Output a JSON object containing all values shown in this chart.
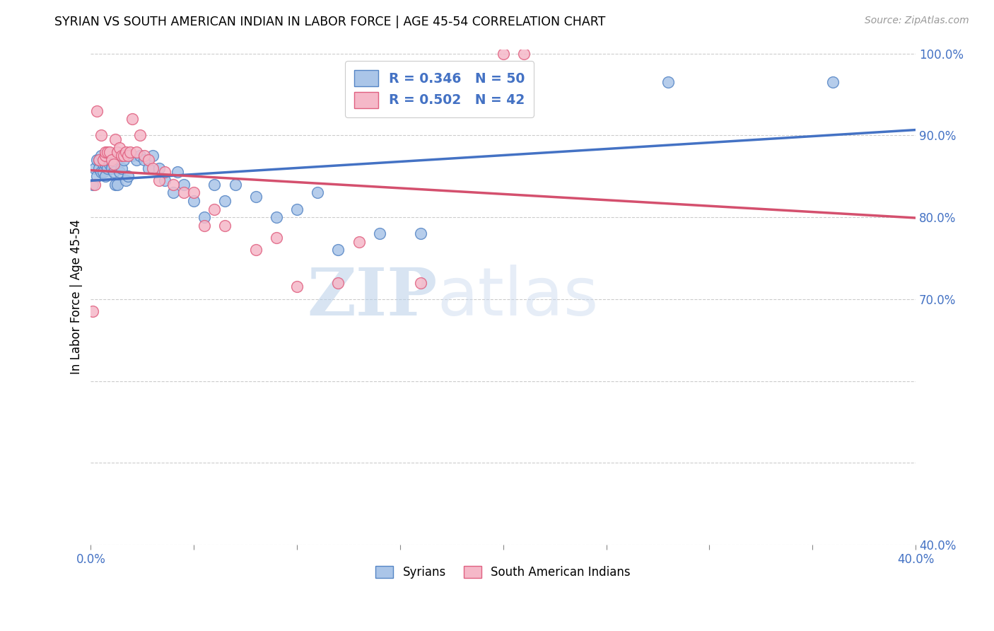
{
  "title": "SYRIAN VS SOUTH AMERICAN INDIAN IN LABOR FORCE | AGE 45-54 CORRELATION CHART",
  "source": "Source: ZipAtlas.com",
  "ylabel": "In Labor Force | Age 45-54",
  "xmin": 0.0,
  "xmax": 0.4,
  "ymin": 0.4,
  "ymax": 1.005,
  "x_tick_vals": [
    0.0,
    0.05,
    0.1,
    0.15,
    0.2,
    0.25,
    0.3,
    0.35,
    0.4
  ],
  "x_tick_labels": [
    "0.0%",
    "",
    "",
    "",
    "",
    "",
    "",
    "",
    "40.0%"
  ],
  "y_tick_vals": [
    0.4,
    0.5,
    0.6,
    0.7,
    0.8,
    0.9,
    1.0
  ],
  "y_tick_labels": [
    "40.0%",
    "",
    "",
    "70.0%",
    "80.0%",
    "90.0%",
    "100.0%"
  ],
  "syrian_color": "#aac5e8",
  "sa_indian_color": "#f5b8c8",
  "syrian_edge_color": "#5585c5",
  "sa_indian_edge_color": "#e06080",
  "syrian_line_color": "#4472c4",
  "sa_indian_line_color": "#d4506e",
  "R_syrian": 0.346,
  "N_syrian": 50,
  "R_sa_indian": 0.502,
  "N_sa_indian": 42,
  "legend_label_syrian": "Syrians",
  "legend_label_sa_indian": "South American Indians",
  "watermark_zip": "ZIP",
  "watermark_atlas": "atlas",
  "syrian_x": [
    0.001,
    0.002,
    0.003,
    0.003,
    0.004,
    0.004,
    0.005,
    0.005,
    0.006,
    0.006,
    0.007,
    0.007,
    0.008,
    0.009,
    0.01,
    0.01,
    0.011,
    0.012,
    0.013,
    0.014,
    0.015,
    0.016,
    0.017,
    0.018,
    0.02,
    0.022,
    0.024,
    0.026,
    0.028,
    0.03,
    0.033,
    0.036,
    0.04,
    0.042,
    0.045,
    0.05,
    0.055,
    0.06,
    0.065,
    0.07,
    0.08,
    0.09,
    0.1,
    0.11,
    0.12,
    0.14,
    0.16,
    0.2,
    0.28,
    0.36
  ],
  "syrian_y": [
    0.84,
    0.86,
    0.87,
    0.85,
    0.86,
    0.87,
    0.855,
    0.875,
    0.865,
    0.855,
    0.85,
    0.865,
    0.86,
    0.865,
    0.865,
    0.86,
    0.855,
    0.84,
    0.84,
    0.855,
    0.86,
    0.87,
    0.845,
    0.85,
    0.875,
    0.87,
    0.875,
    0.87,
    0.86,
    0.875,
    0.86,
    0.845,
    0.83,
    0.855,
    0.84,
    0.82,
    0.8,
    0.84,
    0.82,
    0.84,
    0.825,
    0.8,
    0.81,
    0.83,
    0.76,
    0.78,
    0.78,
    0.95,
    0.965,
    0.965
  ],
  "sa_indian_x": [
    0.001,
    0.002,
    0.003,
    0.004,
    0.005,
    0.006,
    0.007,
    0.007,
    0.008,
    0.009,
    0.01,
    0.011,
    0.012,
    0.013,
    0.014,
    0.015,
    0.016,
    0.017,
    0.018,
    0.019,
    0.02,
    0.022,
    0.024,
    0.026,
    0.028,
    0.03,
    0.033,
    0.036,
    0.04,
    0.045,
    0.05,
    0.055,
    0.06,
    0.065,
    0.08,
    0.09,
    0.1,
    0.12,
    0.13,
    0.16,
    0.2,
    0.21
  ],
  "sa_indian_y": [
    0.685,
    0.84,
    0.93,
    0.87,
    0.9,
    0.87,
    0.875,
    0.88,
    0.88,
    0.88,
    0.87,
    0.865,
    0.895,
    0.88,
    0.885,
    0.875,
    0.875,
    0.88,
    0.875,
    0.88,
    0.92,
    0.88,
    0.9,
    0.875,
    0.87,
    0.86,
    0.845,
    0.855,
    0.84,
    0.83,
    0.83,
    0.79,
    0.81,
    0.79,
    0.76,
    0.775,
    0.715,
    0.72,
    0.77,
    0.72,
    1.0,
    1.0
  ]
}
